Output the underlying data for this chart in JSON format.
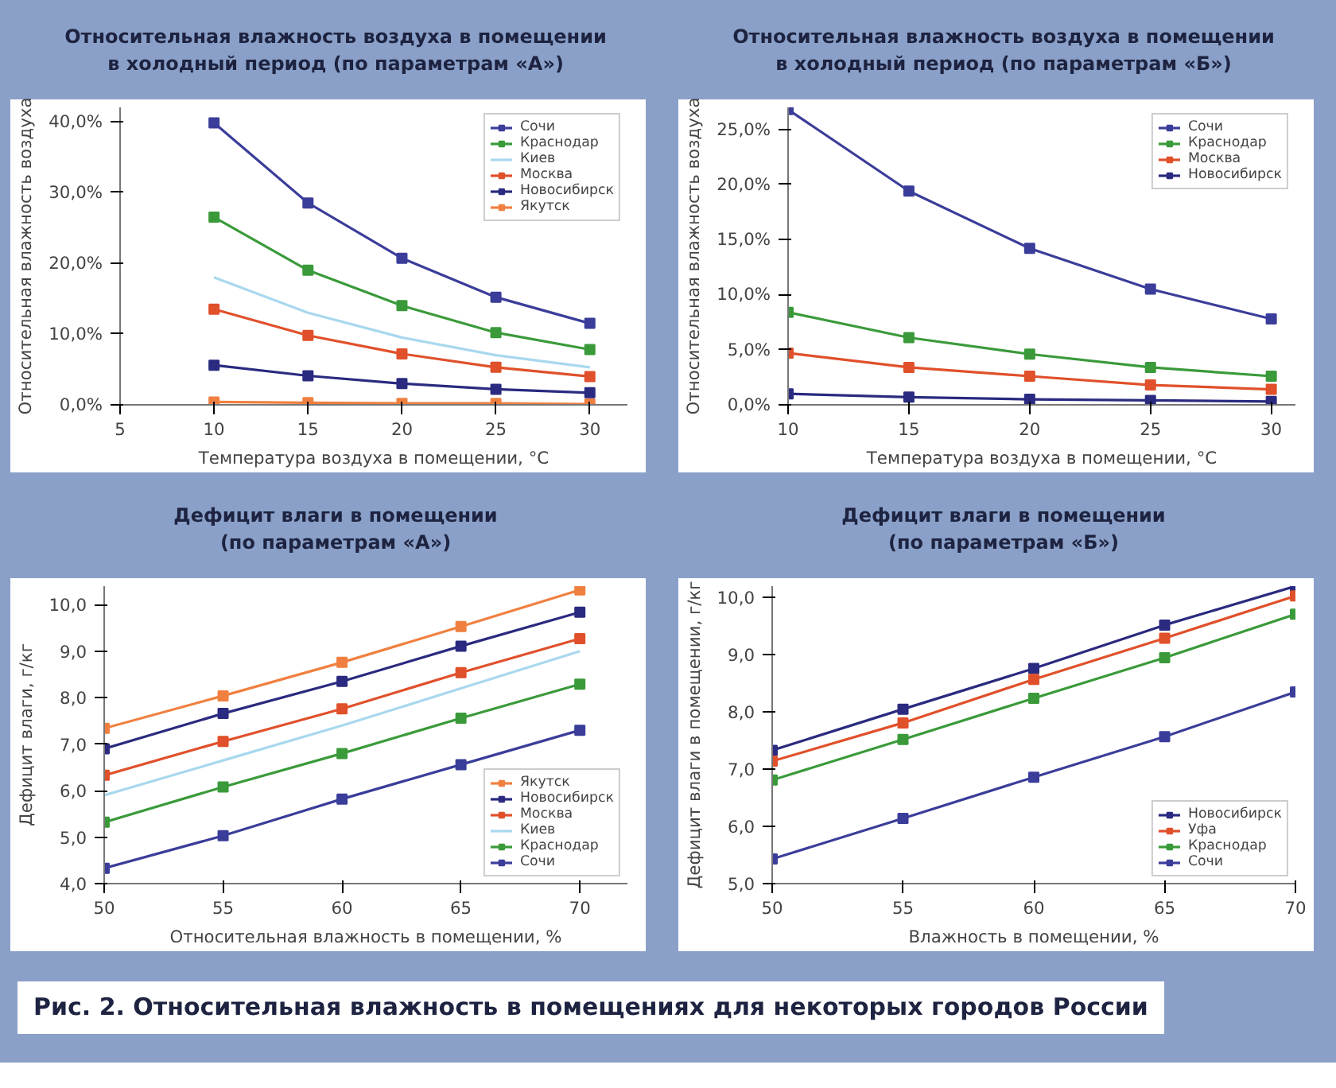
{
  "chart_data": [
    {
      "type": "line",
      "title": "Относительная влажность воздуха в помещении\nв холодный период (по параметрам «А»)",
      "xlabel": "Температура воздуха в помещении, °С",
      "ylabel": "Относительная влажность воздуха",
      "x": [
        10,
        15,
        20,
        25,
        30
      ],
      "xlim": [
        5,
        32
      ],
      "xticks": [
        5,
        10,
        15,
        20,
        25,
        30
      ],
      "ylim": [
        0,
        42
      ],
      "yticks": [
        {
          "value": 0,
          "label": "0,0%"
        },
        {
          "value": 10,
          "label": "10,0%"
        },
        {
          "value": 20,
          "label": "20,0%"
        },
        {
          "value": 30,
          "label": "30,0%"
        },
        {
          "value": 40,
          "label": "40,0%"
        }
      ],
      "grid": false,
      "legend": "top right",
      "marker": "square",
      "line_style": "solid",
      "series": [
        {
          "name": "Сочи",
          "color": "#3b3d9a",
          "values": [
            39.8,
            28.5,
            20.7,
            15.2,
            11.5
          ]
        },
        {
          "name": "Краснодар",
          "color": "#3a9a3a",
          "values": [
            26.5,
            19,
            14,
            10.2,
            7.8
          ]
        },
        {
          "name": "Киев",
          "color": "#a8d8ee",
          "marker": "none",
          "values": [
            18,
            13,
            9.5,
            7,
            5.3
          ]
        },
        {
          "name": "Москва",
          "color": "#e0502a",
          "values": [
            13.5,
            9.8,
            7.2,
            5.3,
            4.0
          ]
        },
        {
          "name": "Новосибирск",
          "color": "#2a2a80",
          "values": [
            5.6,
            4.1,
            3.0,
            2.2,
            1.7
          ]
        },
        {
          "name": "Якутск",
          "color": "#f08040",
          "values": [
            0.4,
            0.3,
            0.2,
            0.2,
            0.1
          ]
        }
      ]
    },
    {
      "type": "line",
      "title": "Относительная влажность воздуха в помещении\nв холодный период (по параметрам «Б»)",
      "xlabel": "Температура воздуха в помещении, °С",
      "ylabel": "Относительная влажность воздуха",
      "x": [
        10,
        15,
        20,
        25,
        30
      ],
      "xlim": [
        10,
        31
      ],
      "xticks": [
        10,
        15,
        20,
        25,
        30
      ],
      "ylim": [
        0,
        27
      ],
      "yticks": [
        {
          "value": 0,
          "label": "0,0%"
        },
        {
          "value": 5,
          "label": "5,0%"
        },
        {
          "value": 10,
          "label": "10,0%"
        },
        {
          "value": 15,
          "label": "15,0%"
        },
        {
          "value": 20,
          "label": "20,0%"
        },
        {
          "value": 25,
          "label": "25,0%"
        }
      ],
      "grid": false,
      "legend": "top right",
      "marker": "square",
      "line_style": "solid",
      "series": [
        {
          "name": "Сочи",
          "color": "#3b3d9a",
          "values": [
            26.8,
            19.4,
            14.2,
            10.5,
            7.8
          ]
        },
        {
          "name": "Краснодар",
          "color": "#3a9a3a",
          "values": [
            8.4,
            6.1,
            4.6,
            3.4,
            2.6
          ]
        },
        {
          "name": "Москва",
          "color": "#e0502a",
          "values": [
            4.7,
            3.4,
            2.6,
            1.8,
            1.4
          ]
        },
        {
          "name": "Новосибирск",
          "color": "#2a2a80",
          "values": [
            1.0,
            0.7,
            0.5,
            0.4,
            0.3
          ]
        }
      ]
    },
    {
      "type": "line",
      "title": "Дефицит влаги в помещении\n(по параметрам «А»)",
      "xlabel": "Относительная влажность в помещении, %",
      "ylabel": "Дефицит влаги, г/кг",
      "x": [
        50,
        55,
        60,
        65,
        70
      ],
      "xlim": [
        50,
        72
      ],
      "xticks": [
        50,
        55,
        60,
        65,
        70
      ],
      "ylim": [
        4,
        10.4
      ],
      "yticks": [
        {
          "value": 4,
          "label": "4,0"
        },
        {
          "value": 5,
          "label": "5,0"
        },
        {
          "value": 6,
          "label": "6,0"
        },
        {
          "value": 7,
          "label": "7,0"
        },
        {
          "value": 8,
          "label": "8,0"
        },
        {
          "value": 9,
          "label": "9,0"
        },
        {
          "value": 10,
          "label": "10,0"
        }
      ],
      "grid": false,
      "legend": "bottom right",
      "marker": "square",
      "line_style": "solid",
      "series": [
        {
          "name": "Якутск",
          "color": "#f08040",
          "values": [
            7.34,
            8.04,
            8.76,
            9.53,
            10.32
          ]
        },
        {
          "name": "Новосибирск",
          "color": "#2a2a80",
          "values": [
            6.9,
            7.66,
            8.35,
            9.11,
            9.84
          ]
        },
        {
          "name": "Москва",
          "color": "#e0502a",
          "values": [
            6.33,
            7.06,
            7.76,
            8.54,
            9.27
          ]
        },
        {
          "name": "Киев",
          "color": "#a8d8ee",
          "marker": "none",
          "values": [
            5.9,
            6.65,
            7.4,
            8.2,
            9.0
          ]
        },
        {
          "name": "Краснодар",
          "color": "#3a9a3a",
          "values": [
            5.32,
            6.08,
            6.8,
            7.56,
            8.29
          ]
        },
        {
          "name": "Сочи",
          "color": "#3b3d9a",
          "values": [
            4.33,
            5.03,
            5.82,
            6.56,
            7.3
          ]
        }
      ]
    },
    {
      "type": "line",
      "title": "Дефицит влаги в помещении\n(по параметрам «Б»)",
      "xlabel": "Влажность в помещении, %",
      "ylabel": "Дефицит влаги в помещении, г/кг",
      "x": [
        50,
        55,
        60,
        65,
        70
      ],
      "xlim": [
        50,
        70
      ],
      "xticks": [
        50,
        55,
        60,
        65,
        70
      ],
      "ylim": [
        5,
        10.2
      ],
      "yticks": [
        {
          "value": 5,
          "label": "5,0"
        },
        {
          "value": 6,
          "label": "6,0"
        },
        {
          "value": 7,
          "label": "7,0"
        },
        {
          "value": 8,
          "label": "8,0"
        },
        {
          "value": 9,
          "label": "9,0"
        },
        {
          "value": 10,
          "label": "10,0"
        }
      ],
      "grid": false,
      "legend": "bottom right",
      "marker": "square",
      "line_style": "solid",
      "annotations": [
        "Рис. 2. Относительная влажность в помещениях для некоторых городов России"
      ],
      "series": [
        {
          "name": "Новосибирск",
          "color": "#2a2a80",
          "values": [
            7.33,
            8.05,
            8.76,
            9.52,
            10.2
          ]
        },
        {
          "name": "Уфа",
          "color": "#e0502a",
          "values": [
            7.14,
            7.81,
            8.57,
            9.29,
            10.03
          ]
        },
        {
          "name": "Краснодар",
          "color": "#3a9a3a",
          "values": [
            6.81,
            7.52,
            8.24,
            8.95,
            9.71
          ]
        },
        {
          "name": "Сочи",
          "color": "#3b3d9a",
          "values": [
            5.43,
            6.14,
            6.86,
            7.57,
            8.35
          ]
        }
      ]
    }
  ]
}
